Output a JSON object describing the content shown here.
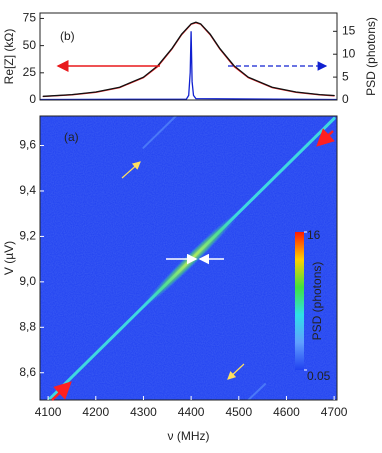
{
  "chart_data": [
    {
      "type": "line",
      "label": "(b)",
      "ylabel": "Re[Z] (kΩ)",
      "y2label": "PSD (photons)",
      "ylabel_color": "#e8191c",
      "y2label_color": "#1020d0",
      "xlim": [
        4083,
        4706
      ],
      "ylim": [
        0,
        80
      ],
      "yticks": [
        0,
        25,
        50,
        75
      ],
      "y2lim": [
        0,
        19
      ],
      "y2ticks": [
        0,
        5,
        10,
        15
      ],
      "series": [
        {
          "color": "#e8191c",
          "x": [
            4090,
            4150,
            4200,
            4250,
            4300,
            4330,
            4360,
            4380,
            4400,
            4410,
            4420,
            4440,
            4460,
            4490,
            4520,
            4570,
            4620,
            4670,
            4700
          ],
          "values": [
            3.2,
            4.8,
            7.1,
            11.4,
            20.5,
            30.8,
            47.0,
            60.0,
            69.6,
            71,
            69.6,
            60.0,
            47.0,
            30.8,
            20.5,
            11.4,
            7.1,
            4.8,
            3.9
          ]
        },
        {
          "color": "#111111",
          "x": [
            4090,
            4150,
            4200,
            4250,
            4300,
            4330,
            4360,
            4380,
            4400,
            4410,
            4420,
            4440,
            4460,
            4490,
            4520,
            4570,
            4620,
            4670,
            4700
          ],
          "values": [
            3.4,
            5.0,
            7.4,
            11.8,
            21,
            31.5,
            47.5,
            60.5,
            70,
            71.5,
            70,
            60.5,
            47.5,
            31.5,
            21,
            11.8,
            7.4,
            5.0,
            4.1
          ]
        },
        {
          "color": "#1020d0",
          "axis": "y2",
          "x": [
            4083,
            4390,
            4395,
            4398,
            4400,
            4402,
            4405,
            4410,
            4706
          ],
          "values": [
            0.1,
            0.2,
            1,
            6,
            15,
            4,
            1,
            0.3,
            0.1
          ]
        }
      ]
    },
    {
      "type": "heatmap",
      "label": "(a)",
      "xlabel": "ν (MHz)",
      "ylabel": "V (µV)",
      "background": "#1f3ff0",
      "xlim": [
        4083,
        4706
      ],
      "xticks": [
        4100,
        4200,
        4300,
        4400,
        4500,
        4600,
        4700
      ],
      "ylim": [
        8.48,
        9.73
      ],
      "yticks": [
        {
          "value": 8.6,
          "label": "8,6"
        },
        {
          "value": 8.8,
          "label": "8,8"
        },
        {
          "value": 9.0,
          "label": "9,0"
        },
        {
          "value": 9.2,
          "label": "9,2"
        },
        {
          "value": 9.4,
          "label": "9,4"
        },
        {
          "value": 9.6,
          "label": "9,6"
        }
      ],
      "series": [
        {
          "color": "#3fd8e0",
          "x": [
            4100,
            4700
          ],
          "values": [
            8.478,
            9.719
          ]
        },
        {
          "color": "#4a78f8",
          "x": [
            4300,
            4368
          ],
          "values": [
            9.59,
            9.73
          ]
        },
        {
          "color": "#4a78f8",
          "x": [
            4520,
            4555
          ],
          "values": [
            8.48,
            8.55
          ]
        }
      ],
      "colorbar": {
        "label": "PSD (photons)",
        "ticks": [
          0.05,
          16
        ]
      }
    }
  ]
}
